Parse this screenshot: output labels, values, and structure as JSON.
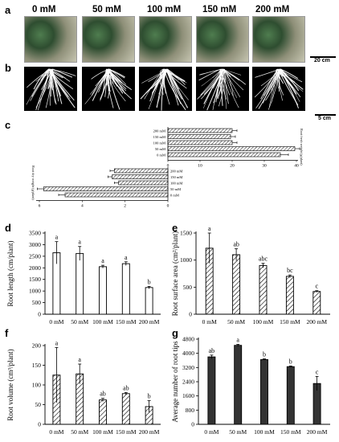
{
  "panels": {
    "a": "a",
    "b": "b",
    "c": "c",
    "d": "d",
    "e": "e",
    "f": "f",
    "g": "g"
  },
  "concentrations": [
    "0 mM",
    "50 mM",
    "100 mM",
    "150 mM",
    "200 mM"
  ],
  "scale_bars": {
    "a": "20 cm",
    "b": "5 cm"
  },
  "chart_data": [
    {
      "panel": "c",
      "type": "bar",
      "orientation": "horizontal",
      "categories": [
        "200 mM",
        "150 mM",
        "100 mM",
        "50 mM",
        "0 mM"
      ],
      "values": [
        20,
        19.5,
        20,
        39.5,
        35
      ],
      "errors": [
        1.5,
        1.5,
        1.5,
        1.5,
        2.5
      ],
      "ylabel": "Root fresh weight (g/plant)",
      "xlim": [
        0,
        40
      ],
      "xticks": [
        "0",
        "10",
        "20",
        "30",
        "40"
      ]
    },
    {
      "panel": "c",
      "type": "bar",
      "orientation": "horizontal-reversed",
      "categories": [
        "200 mM",
        "150 mM",
        "100 mM",
        "50 mM",
        "0 mM"
      ],
      "values": [
        2.5,
        2.6,
        2.3,
        5.8,
        4.8
      ],
      "errors": [
        0.2,
        0.2,
        0.2,
        0.3,
        0.3
      ],
      "ylabel": "Root dry weight (g/plant)",
      "xlim": [
        0,
        6
      ],
      "xticks": [
        "6",
        "4",
        "2",
        "0"
      ]
    },
    {
      "panel": "d",
      "type": "bar",
      "categories": [
        "0 mM",
        "50 mM",
        "100 mM",
        "150 mM",
        "200 mM"
      ],
      "values": [
        2650,
        2620,
        2050,
        2180,
        1150
      ],
      "errors": [
        480,
        300,
        60,
        80,
        50
      ],
      "letters": [
        "a",
        "a",
        "a",
        "a",
        "b"
      ],
      "ylabel": "Root length (cm/plant)",
      "ylim": [
        0,
        3500
      ],
      "yticks": [
        "0",
        "500",
        "1000",
        "1500",
        "2000",
        "2500",
        "3000",
        "3500"
      ],
      "pattern": "white"
    },
    {
      "panel": "e",
      "type": "bar",
      "categories": [
        "0 mM",
        "50 mM",
        "100 mM",
        "150 mM",
        "200 mM"
      ],
      "values": [
        1220,
        1100,
        900,
        700,
        420
      ],
      "errors": [
        280,
        110,
        40,
        25,
        15
      ],
      "letters": [
        "a",
        "ab",
        "abc",
        "bc",
        "c"
      ],
      "ylabel": "Root surface area (cm²/plant)",
      "ylim": [
        0,
        1500
      ],
      "yticks": [
        "0",
        "500",
        "1000",
        "1500"
      ],
      "pattern": "hatch"
    },
    {
      "panel": "f",
      "type": "bar",
      "categories": [
        "0 mM",
        "50 mM",
        "100 mM",
        "150 mM",
        "200 mM"
      ],
      "values": [
        125,
        128,
        62,
        78,
        45
      ],
      "errors": [
        70,
        25,
        4,
        3,
        15
      ],
      "letters": [
        "a",
        "a",
        "ab",
        "ab",
        "b"
      ],
      "ylabel": "Root volume (cm³/plant)",
      "ylim": [
        0,
        200
      ],
      "yticks": [
        "0",
        "50",
        "100",
        "150",
        "200"
      ],
      "pattern": "hatch"
    },
    {
      "panel": "g",
      "type": "bar",
      "categories": [
        "0 mM",
        "50 mM",
        "100 mM",
        "150 mM",
        "200 mM"
      ],
      "values": [
        3800,
        4450,
        3650,
        3250,
        2300
      ],
      "errors": [
        100,
        60,
        40,
        40,
        400
      ],
      "letters": [
        "ab",
        "a",
        "b",
        "b",
        "c"
      ],
      "ylabel": "Average number of root tips",
      "ylim": [
        0,
        4800
      ],
      "yticks": [
        "0",
        "800",
        "1600",
        "2400",
        "3200",
        "4000",
        "4800"
      ],
      "pattern": "dark"
    }
  ]
}
